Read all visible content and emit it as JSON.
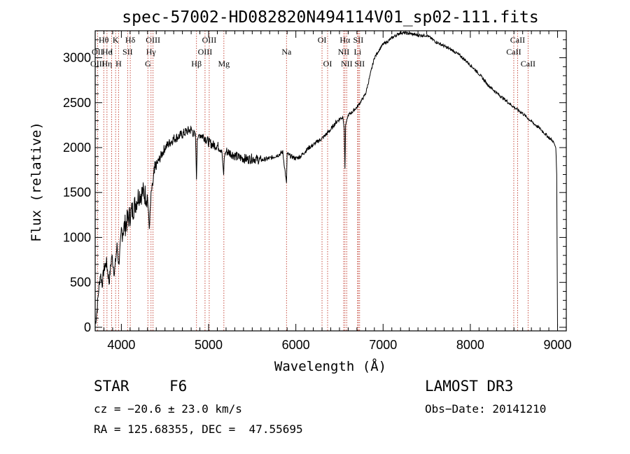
{
  "chart_data": {
    "type": "line",
    "title": "spec-57002-HD082820N494114V01_sp02-111.fits",
    "xlabel": "Wavelength (Å)",
    "ylabel": "Flux (relative)",
    "xlim": [
      3700,
      9100
    ],
    "ylim": [
      -40,
      3300
    ],
    "x_ticks": [
      4000,
      5000,
      6000,
      7000,
      8000,
      9000
    ],
    "x_tick_labels": [
      "4000",
      "5000",
      "6000",
      "7000",
      "8000",
      "9000"
    ],
    "y_ticks": [
      0,
      500,
      1000,
      1500,
      2000,
      2500,
      3000
    ],
    "y_tick_labels": [
      "0",
      "500",
      "1000",
      "1500",
      "2000",
      "2500",
      "3000"
    ],
    "series": [
      {
        "name": "flux",
        "x": [
          3700,
          3720,
          3740,
          3760,
          3780,
          3800,
          3830,
          3860,
          3890,
          3920,
          3950,
          3970,
          4000,
          4050,
          4100,
          4150,
          4200,
          4250,
          4300,
          4320,
          4340,
          4360,
          4400,
          4450,
          4500,
          4550,
          4600,
          4650,
          4700,
          4750,
          4800,
          4850,
          4861,
          4870,
          4900,
          4950,
          5000,
          5050,
          5100,
          5150,
          5172,
          5180,
          5200,
          5250,
          5300,
          5350,
          5400,
          5450,
          5500,
          5550,
          5600,
          5650,
          5700,
          5750,
          5800,
          5850,
          5893,
          5900,
          5950,
          6000,
          6050,
          6100,
          6150,
          6200,
          6250,
          6300,
          6350,
          6400,
          6450,
          6500,
          6540,
          6555,
          6563,
          6570,
          6600,
          6650,
          6700,
          6750,
          6800,
          6850,
          6900,
          6950,
          7000,
          7050,
          7100,
          7150,
          7200,
          7300,
          7400,
          7500,
          7600,
          7700,
          7800,
          7900,
          8000,
          8100,
          8200,
          8300,
          8400,
          8500,
          8600,
          8700,
          8800,
          8900,
          8950,
          8980,
          8990,
          9000
        ],
        "values": [
          30,
          180,
          420,
          600,
          480,
          650,
          720,
          500,
          800,
          600,
          900,
          700,
          1050,
          1150,
          1250,
          1350,
          1480,
          1500,
          1450,
          1100,
          1480,
          1600,
          1800,
          1900,
          2000,
          2050,
          2100,
          2120,
          2150,
          2180,
          2200,
          2120,
          1650,
          2100,
          2150,
          2120,
          2060,
          2030,
          2020,
          1980,
          1700,
          1900,
          1960,
          1940,
          1910,
          1890,
          1880,
          1870,
          1880,
          1870,
          1860,
          1870,
          1880,
          1900,
          1920,
          1950,
          1600,
          1930,
          1900,
          1880,
          1900,
          1950,
          2000,
          2030,
          2070,
          2100,
          2150,
          2200,
          2270,
          2320,
          2340,
          2200,
          1770,
          2250,
          2360,
          2400,
          2450,
          2520,
          2600,
          2800,
          3000,
          3080,
          3150,
          3180,
          3220,
          3250,
          3280,
          3270,
          3250,
          3250,
          3180,
          3130,
          3080,
          3010,
          2920,
          2820,
          2700,
          2610,
          2530,
          2450,
          2380,
          2290,
          2210,
          2110,
          2070,
          2000,
          1700,
          0
        ]
      }
    ],
    "lines": [
      {
        "label": "Hθ",
        "x": 3798,
        "row": 0
      },
      {
        "label": "OII",
        "x": 3727,
        "row": 1
      },
      {
        "label": "OIII",
        "x": 3727,
        "row": 2
      },
      {
        "label": "He",
        "x": 3835,
        "row": 1
      },
      {
        "label": "Hη",
        "x": 3835,
        "row": 2
      },
      {
        "label": "K",
        "x": 3934,
        "row": 0
      },
      {
        "label": "I",
        "x": 3889,
        "row": 1
      },
      {
        "label": "H",
        "x": 3968,
        "row": 2
      },
      {
        "label": "SII",
        "x": 4072,
        "row": 1
      },
      {
        "label": "Hδ",
        "x": 4102,
        "row": 0
      },
      {
        "label": "OIII",
        "x": 4363,
        "row": 0
      },
      {
        "label": "Hγ",
        "x": 4340,
        "row": 1
      },
      {
        "label": "G",
        "x": 4304,
        "row": 2
      },
      {
        "label": "Hβ",
        "x": 4861,
        "row": 2
      },
      {
        "label": "OIII",
        "x": 5007,
        "row": 0
      },
      {
        "label": "OIII",
        "x": 4959,
        "row": 1
      },
      {
        "label": "Mg",
        "x": 5175,
        "row": 2
      },
      {
        "label": "Na",
        "x": 5893,
        "row": 1
      },
      {
        "label": "OI",
        "x": 6300,
        "row": 0
      },
      {
        "label": "OI",
        "x": 6364,
        "row": 2
      },
      {
        "label": "Hα",
        "x": 6563,
        "row": 0
      },
      {
        "label": "NII",
        "x": 6548,
        "row": 1
      },
      {
        "label": "NII",
        "x": 6583,
        "row": 2
      },
      {
        "label": "SII",
        "x": 6716,
        "row": 0
      },
      {
        "label": "Li",
        "x": 6708,
        "row": 1
      },
      {
        "label": "SII",
        "x": 6731,
        "row": 2
      },
      {
        "label": "CaII",
        "x": 8542,
        "row": 0
      },
      {
        "label": "CaII",
        "x": 8498,
        "row": 1
      },
      {
        "label": "CaII",
        "x": 8662,
        "row": 2
      }
    ]
  },
  "info": {
    "object_class": "STAR",
    "subclass": "F6",
    "survey": "LAMOST DR3",
    "cz": "cz = −20.6 ± 23.0 km/s",
    "obs_date": "Obs−Date: 20141210",
    "coords": "RA = 125.68355, DEC =  47.55695"
  }
}
